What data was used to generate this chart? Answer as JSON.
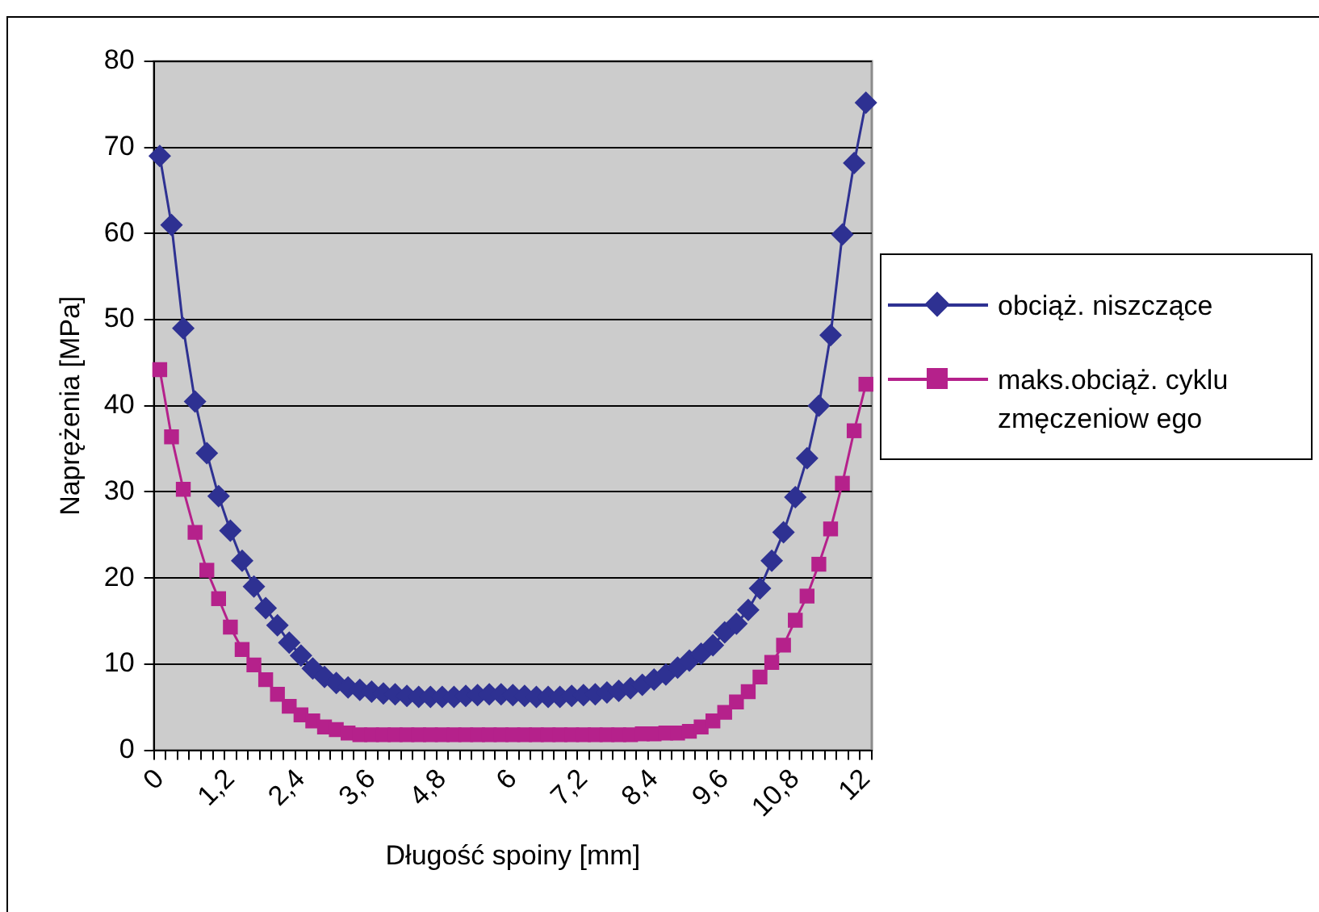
{
  "chart_data": {
    "type": "line",
    "xlabel": "Długość spoiny [mm]",
    "ylabel": "Naprężenia [MPa]",
    "categories": [
      "0",
      null,
      null,
      null,
      null,
      null,
      "1,2",
      null,
      null,
      null,
      null,
      null,
      "2,4",
      null,
      null,
      null,
      null,
      null,
      "3,6",
      null,
      null,
      null,
      null,
      null,
      "4,8",
      null,
      null,
      null,
      null,
      null,
      "6",
      null,
      null,
      null,
      null,
      null,
      "7,2",
      null,
      null,
      null,
      null,
      null,
      "8,4",
      null,
      null,
      null,
      null,
      null,
      "9,6",
      null,
      null,
      null,
      null,
      null,
      "10,8",
      null,
      null,
      null,
      null,
      null,
      "12"
    ],
    "series": [
      {
        "name": "obciąż. niszczące",
        "color": "#2e3192",
        "marker": "diamond",
        "values": [
          69,
          61,
          49,
          40.5,
          34.5,
          29.5,
          25.5,
          22,
          19,
          16.5,
          14.5,
          12.5,
          11,
          9.5,
          8.5,
          7.8,
          7.3,
          7,
          6.8,
          6.6,
          6.5,
          6.3,
          6.2,
          6.2,
          6.2,
          6.2,
          6.3,
          6.4,
          6.5,
          6.5,
          6.4,
          6.3,
          6.2,
          6.2,
          6.2,
          6.3,
          6.4,
          6.5,
          6.7,
          6.9,
          7.2,
          7.6,
          8.2,
          8.8,
          9.6,
          10.4,
          11.2,
          12.2,
          13.7,
          14.7,
          16.3,
          18.8,
          22,
          25.3,
          29.4,
          33.9,
          40,
          48.2,
          59.9,
          68.2,
          75.2
        ]
      },
      {
        "name": "maks.obciąż. cyklu zmęczeniow ego",
        "color": "#b5218b",
        "marker": "square",
        "values": [
          44.2,
          36.4,
          30.3,
          25.3,
          20.9,
          17.6,
          14.3,
          11.7,
          9.9,
          8.2,
          6.5,
          5.1,
          4.1,
          3.4,
          2.7,
          2.4,
          2,
          1.8,
          1.8,
          1.8,
          1.8,
          1.8,
          1.8,
          1.8,
          1.8,
          1.8,
          1.8,
          1.8,
          1.8,
          1.8,
          1.8,
          1.8,
          1.8,
          1.8,
          1.8,
          1.8,
          1.8,
          1.8,
          1.8,
          1.8,
          1.8,
          1.9,
          1.9,
          2,
          2,
          2.2,
          2.7,
          3.4,
          4.4,
          5.6,
          6.8,
          8.5,
          10.2,
          12.2,
          15.1,
          17.9,
          21.6,
          25.7,
          31,
          37.1,
          42.5
        ]
      }
    ],
    "ylim": [
      0,
      80
    ],
    "yticks": [
      0,
      10,
      20,
      30,
      40,
      50,
      60,
      70,
      80
    ],
    "grid": "y",
    "legend": "right"
  }
}
